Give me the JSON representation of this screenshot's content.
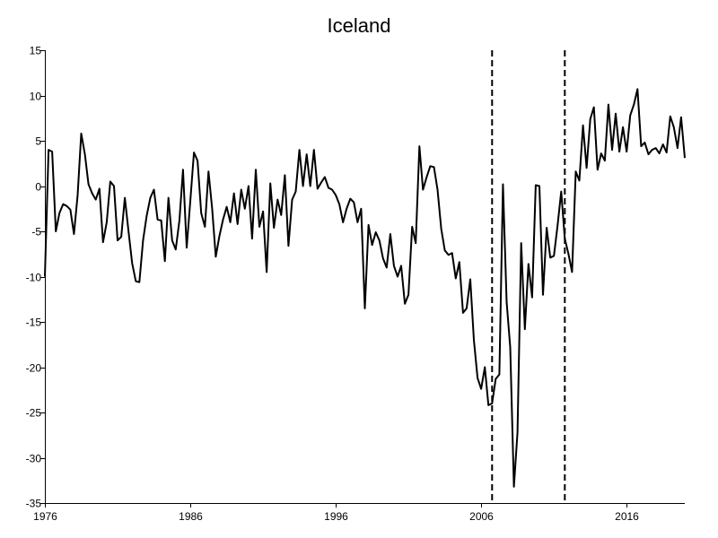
{
  "chart_data": {
    "type": "line",
    "title": "Iceland",
    "xlabel": "",
    "ylabel": "",
    "xlim": [
      1976,
      2020
    ],
    "ylim": [
      -35,
      15
    ],
    "x_ticks": [
      1976,
      1986,
      1996,
      2006,
      2016
    ],
    "y_ticks": [
      15,
      10,
      5,
      0,
      -5,
      -10,
      -15,
      -20,
      -25,
      -30,
      -35
    ],
    "grid": false,
    "legend": "none",
    "vertical_lines": [
      2006.75,
      2011.75
    ],
    "series": [
      {
        "color": "#000000",
        "points": [
          [
            1976.0,
            -10.0
          ],
          [
            1976.25,
            4.0
          ],
          [
            1976.5,
            3.8
          ],
          [
            1976.75,
            -5.0
          ],
          [
            1977.0,
            -3.0
          ],
          [
            1977.25,
            -2.0
          ],
          [
            1977.5,
            -2.2
          ],
          [
            1977.75,
            -2.6
          ],
          [
            1978.0,
            -5.3
          ],
          [
            1978.25,
            -1.0
          ],
          [
            1978.5,
            5.8
          ],
          [
            1978.75,
            3.5
          ],
          [
            1979.0,
            0.2
          ],
          [
            1979.25,
            -0.8
          ],
          [
            1979.5,
            -1.5
          ],
          [
            1979.75,
            -0.3
          ],
          [
            1980.0,
            -6.2
          ],
          [
            1980.25,
            -4.0
          ],
          [
            1980.5,
            0.5
          ],
          [
            1980.75,
            0.0
          ],
          [
            1981.0,
            -6.0
          ],
          [
            1981.25,
            -5.6
          ],
          [
            1981.5,
            -1.3
          ],
          [
            1981.75,
            -5.0
          ],
          [
            1982.0,
            -8.5
          ],
          [
            1982.25,
            -10.5
          ],
          [
            1982.5,
            -10.6
          ],
          [
            1982.75,
            -6.0
          ],
          [
            1983.0,
            -3.3
          ],
          [
            1983.25,
            -1.3
          ],
          [
            1983.5,
            -0.4
          ],
          [
            1983.75,
            -3.7
          ],
          [
            1984.0,
            -3.8
          ],
          [
            1984.25,
            -8.3
          ],
          [
            1984.5,
            -1.3
          ],
          [
            1984.75,
            -6.0
          ],
          [
            1985.0,
            -7.0
          ],
          [
            1985.25,
            -3.8
          ],
          [
            1985.5,
            1.8
          ],
          [
            1985.75,
            -6.8
          ],
          [
            1986.0,
            -1.7
          ],
          [
            1986.25,
            3.7
          ],
          [
            1986.5,
            2.8
          ],
          [
            1986.75,
            -3.0
          ],
          [
            1987.0,
            -4.5
          ],
          [
            1987.25,
            1.6
          ],
          [
            1987.5,
            -2.5
          ],
          [
            1987.75,
            -7.8
          ],
          [
            1988.0,
            -5.5
          ],
          [
            1988.25,
            -3.7
          ],
          [
            1988.5,
            -2.3
          ],
          [
            1988.75,
            -4.0
          ],
          [
            1989.0,
            -0.8
          ],
          [
            1989.25,
            -4.2
          ],
          [
            1989.5,
            -0.4
          ],
          [
            1989.75,
            -2.5
          ],
          [
            1990.0,
            0.0
          ],
          [
            1990.25,
            -5.8
          ],
          [
            1990.5,
            1.8
          ],
          [
            1990.75,
            -4.5
          ],
          [
            1991.0,
            -2.8
          ],
          [
            1991.25,
            -9.5
          ],
          [
            1991.5,
            0.3
          ],
          [
            1991.75,
            -4.6
          ],
          [
            1992.0,
            -1.5
          ],
          [
            1992.25,
            -3.2
          ],
          [
            1992.5,
            1.2
          ],
          [
            1992.75,
            -6.6
          ],
          [
            1993.0,
            -1.5
          ],
          [
            1993.25,
            -0.6
          ],
          [
            1993.5,
            4.0
          ],
          [
            1993.75,
            0.0
          ],
          [
            1994.0,
            3.5
          ],
          [
            1994.25,
            0.0
          ],
          [
            1994.5,
            4.0
          ],
          [
            1994.75,
            -0.3
          ],
          [
            1995.0,
            0.4
          ],
          [
            1995.25,
            1.0
          ],
          [
            1995.5,
            -0.2
          ],
          [
            1995.75,
            -0.4
          ],
          [
            1996.0,
            -1.0
          ],
          [
            1996.25,
            -2.0
          ],
          [
            1996.5,
            -4.0
          ],
          [
            1996.75,
            -2.5
          ],
          [
            1997.0,
            -1.4
          ],
          [
            1997.25,
            -1.8
          ],
          [
            1997.5,
            -4.0
          ],
          [
            1997.75,
            -2.5
          ],
          [
            1998.0,
            -13.5
          ],
          [
            1998.25,
            -4.3
          ],
          [
            1998.5,
            -6.5
          ],
          [
            1998.75,
            -5.1
          ],
          [
            1999.0,
            -6.0
          ],
          [
            1999.25,
            -8.0
          ],
          [
            1999.5,
            -9.0
          ],
          [
            1999.75,
            -5.3
          ],
          [
            2000.0,
            -8.8
          ],
          [
            2000.25,
            -10.0
          ],
          [
            2000.5,
            -8.8
          ],
          [
            2000.75,
            -13.0
          ],
          [
            2001.0,
            -12.0
          ],
          [
            2001.25,
            -4.5
          ],
          [
            2001.5,
            -6.3
          ],
          [
            2001.75,
            4.4
          ],
          [
            2002.0,
            -0.4
          ],
          [
            2002.25,
            1.0
          ],
          [
            2002.5,
            2.2
          ],
          [
            2002.75,
            2.1
          ],
          [
            2003.0,
            -0.4
          ],
          [
            2003.25,
            -4.7
          ],
          [
            2003.5,
            -7.1
          ],
          [
            2003.75,
            -7.6
          ],
          [
            2004.0,
            -7.4
          ],
          [
            2004.25,
            -10.2
          ],
          [
            2004.5,
            -8.4
          ],
          [
            2004.75,
            -14.0
          ],
          [
            2005.0,
            -13.5
          ],
          [
            2005.25,
            -10.3
          ],
          [
            2005.5,
            -17.0
          ],
          [
            2005.75,
            -21.2
          ],
          [
            2006.0,
            -22.4
          ],
          [
            2006.25,
            -20.0
          ],
          [
            2006.5,
            -24.2
          ],
          [
            2006.75,
            -24.0
          ],
          [
            2007.0,
            -21.3
          ],
          [
            2007.25,
            -20.8
          ],
          [
            2007.5,
            0.2
          ],
          [
            2007.75,
            -12.8
          ],
          [
            2008.0,
            -17.8
          ],
          [
            2008.25,
            -33.2
          ],
          [
            2008.5,
            -27.2
          ],
          [
            2008.75,
            -6.3
          ],
          [
            2009.0,
            -15.8
          ],
          [
            2009.25,
            -8.6
          ],
          [
            2009.5,
            -12.3
          ],
          [
            2009.75,
            0.1
          ],
          [
            2010.0,
            0.0
          ],
          [
            2010.25,
            -12.0
          ],
          [
            2010.5,
            -4.6
          ],
          [
            2010.75,
            -7.9
          ],
          [
            2011.0,
            -7.7
          ],
          [
            2011.25,
            -4.4
          ],
          [
            2011.5,
            -0.6
          ],
          [
            2011.75,
            -5.8
          ],
          [
            2012.0,
            -7.5
          ],
          [
            2012.25,
            -9.5
          ],
          [
            2012.5,
            1.6
          ],
          [
            2012.75,
            0.6
          ],
          [
            2013.0,
            6.7
          ],
          [
            2013.25,
            2.0
          ],
          [
            2013.5,
            7.4
          ],
          [
            2013.75,
            8.7
          ],
          [
            2014.0,
            1.8
          ],
          [
            2014.25,
            3.6
          ],
          [
            2014.5,
            2.8
          ],
          [
            2014.75,
            9.0
          ],
          [
            2015.0,
            4.0
          ],
          [
            2015.25,
            8.0
          ],
          [
            2015.5,
            3.8
          ],
          [
            2015.75,
            6.5
          ],
          [
            2016.0,
            3.8
          ],
          [
            2016.25,
            7.8
          ],
          [
            2016.5,
            9.0
          ],
          [
            2016.75,
            10.7
          ],
          [
            2017.0,
            4.4
          ],
          [
            2017.25,
            4.8
          ],
          [
            2017.5,
            3.5
          ],
          [
            2017.75,
            4.0
          ],
          [
            2018.0,
            4.2
          ],
          [
            2018.25,
            3.6
          ],
          [
            2018.5,
            4.6
          ],
          [
            2018.75,
            3.7
          ],
          [
            2019.0,
            7.7
          ],
          [
            2019.25,
            6.5
          ],
          [
            2019.5,
            4.2
          ],
          [
            2019.75,
            7.6
          ],
          [
            2020.0,
            3.1
          ]
        ]
      }
    ]
  }
}
